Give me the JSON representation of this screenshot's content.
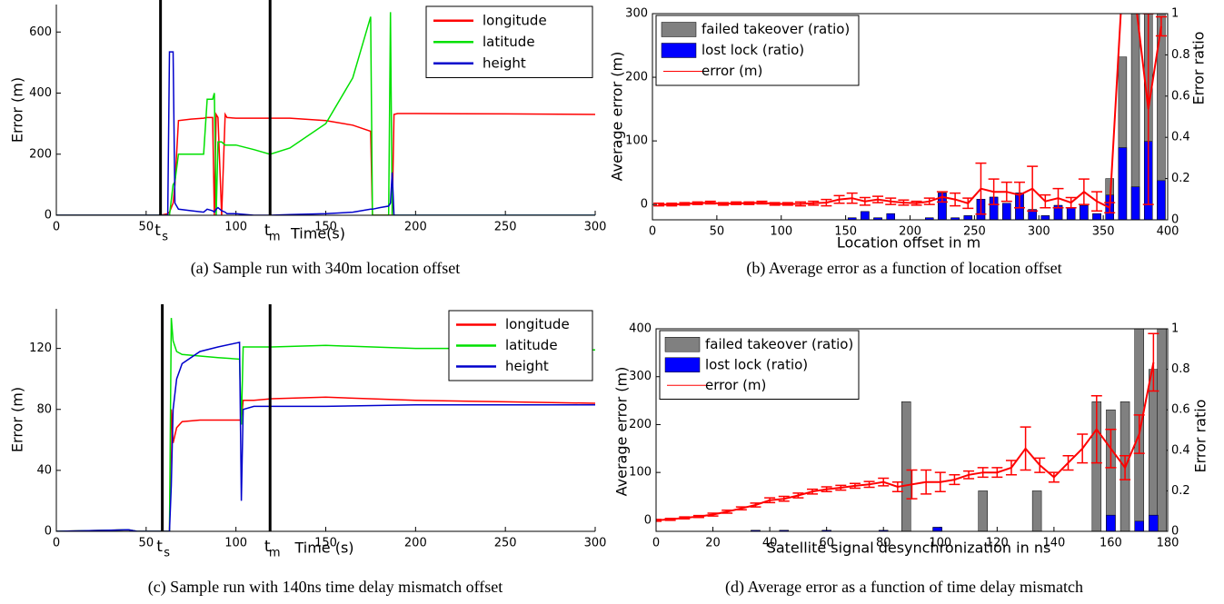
{
  "chart_data": [
    {
      "type": "line",
      "caption": "(a) Sample run with 340m location offset",
      "xlabel": "Time(s)",
      "ylabel": "Error (m)",
      "x": [
        0,
        50,
        58,
        62,
        63,
        65,
        66,
        68,
        75,
        82,
        84,
        87,
        88,
        89,
        90,
        92,
        94,
        95,
        100,
        110,
        119,
        130,
        150,
        165,
        175,
        176,
        180,
        185,
        186,
        187,
        188,
        190,
        200,
        250,
        300
      ],
      "series": [
        {
          "name": "longitude",
          "color": "#ff0000",
          "values": [
            0,
            0,
            0,
            5,
            10,
            40,
            100,
            310,
            315,
            318,
            320,
            320,
            0,
            330,
            320,
            0,
            330,
            320,
            318,
            318,
            318,
            318,
            310,
            295,
            275,
            0,
            0,
            0,
            0,
            0,
            330,
            333,
            333,
            332,
            330
          ]
        },
        {
          "name": "latitude",
          "color": "#00e000",
          "values": [
            0,
            0,
            0,
            0,
            0,
            100,
            110,
            200,
            200,
            200,
            380,
            380,
            400,
            0,
            240,
            240,
            230,
            230,
            230,
            215,
            200,
            220,
            300,
            450,
            650,
            0,
            0,
            0,
            665,
            0,
            0,
            0,
            0,
            0,
            0
          ]
        },
        {
          "name": "height",
          "color": "#0000cc",
          "values": [
            0,
            0,
            0,
            0,
            535,
            535,
            40,
            20,
            15,
            10,
            20,
            15,
            10,
            20,
            25,
            15,
            10,
            5,
            5,
            0,
            0,
            2,
            5,
            10,
            20,
            20,
            25,
            30,
            40,
            140,
            0,
            0,
            0,
            0,
            0
          ]
        }
      ],
      "vlines": [
        {
          "x": 58,
          "label": "t",
          "sub": "s"
        },
        {
          "x": 119,
          "label": "t",
          "sub": "m"
        }
      ],
      "xlim": [
        0,
        300
      ],
      "xticks": [
        0,
        50,
        100,
        150,
        200,
        250,
        300
      ],
      "ylim": [
        0,
        690
      ],
      "yticks": [
        0,
        200,
        400,
        600
      ],
      "legend": "upper right"
    },
    {
      "type": "combo",
      "caption": "(b) Average error as a function of location offset",
      "xlabel": "Location offset in m",
      "ylabel": "Average error (m)",
      "y2label": "Error ratio",
      "x": [
        5,
        15,
        25,
        35,
        45,
        55,
        65,
        75,
        85,
        95,
        105,
        115,
        125,
        135,
        145,
        155,
        165,
        175,
        185,
        195,
        205,
        215,
        225,
        235,
        245,
        255,
        265,
        275,
        285,
        295,
        305,
        315,
        325,
        335,
        345,
        355,
        365,
        375,
        385,
        395
      ],
      "series": [
        {
          "name": "failed takeover (ratio)",
          "type": "bar",
          "axis": "y2",
          "color": "#808080",
          "values": [
            0,
            0,
            0,
            0,
            0,
            0,
            0,
            0,
            0,
            0,
            0,
            0,
            0,
            0,
            0,
            0.01,
            0.04,
            0.01,
            0.03,
            0,
            0,
            0.01,
            0.13,
            0.01,
            0.02,
            0.1,
            0.11,
            0.08,
            0.13,
            0.05,
            0.02,
            0.07,
            0.06,
            0.07,
            0.03,
            0.2,
            0.79,
            1,
            1,
            1
          ]
        },
        {
          "name": "lost lock (ratio)",
          "type": "bar",
          "axis": "y2",
          "color": "#0000ff",
          "values": [
            0,
            0,
            0,
            0,
            0,
            0,
            0,
            0,
            0,
            0,
            0,
            0,
            0,
            0,
            0,
            0.01,
            0.04,
            0.01,
            0.03,
            0,
            0,
            0.01,
            0.13,
            0.01,
            0.02,
            0.1,
            0.11,
            0.08,
            0.13,
            0.05,
            0.02,
            0.07,
            0.06,
            0.07,
            0.03,
            0.12,
            0.35,
            0.16,
            0.38,
            0.19
          ]
        },
        {
          "name": "error (m)",
          "type": "line",
          "color": "#ff0000",
          "values": [
            0,
            0,
            1,
            2,
            3,
            1,
            2,
            2,
            3,
            1,
            1,
            1,
            2,
            3,
            8,
            10,
            5,
            8,
            5,
            3,
            2,
            5,
            12,
            8,
            2,
            25,
            20,
            20,
            15,
            25,
            5,
            10,
            3,
            20,
            5,
            -5,
            350,
            320,
            150,
            280
          ],
          "errors": [
            2,
            2,
            2,
            2,
            2,
            2,
            2,
            2,
            2,
            2,
            2,
            3,
            3,
            5,
            6,
            8,
            6,
            5,
            5,
            4,
            3,
            5,
            8,
            10,
            8,
            40,
            20,
            15,
            20,
            35,
            10,
            15,
            8,
            20,
            15,
            8,
            0,
            0,
            150,
            15
          ]
        }
      ],
      "xlim": [
        0,
        400
      ],
      "xticks": [
        0,
        50,
        100,
        150,
        200,
        250,
        300,
        350,
        400
      ],
      "ylim": [
        -24,
        300
      ],
      "yticks": [
        0,
        100,
        200,
        300
      ],
      "y2lim": [
        0,
        1
      ],
      "y2ticks": [
        0,
        0.2,
        0.4,
        0.6,
        0.8,
        1
      ],
      "legend": "upper left"
    },
    {
      "type": "line",
      "caption": "(c) Sample run with 140ns time delay mismatch offset",
      "xlabel": "Time (s)",
      "ylabel": "Error (m)",
      "x": [
        0,
        40,
        45,
        60,
        62,
        63,
        64,
        65,
        67,
        70,
        80,
        90,
        102,
        103,
        104,
        110,
        120,
        150,
        200,
        250,
        300
      ],
      "series": [
        {
          "name": "longitude",
          "color": "#ff0000",
          "values": [
            0,
            1,
            0,
            0,
            0,
            0,
            80,
            58,
            68,
            72,
            73,
            73,
            73,
            73,
            86,
            86,
            87,
            88,
            86,
            85,
            84
          ]
        },
        {
          "name": "latitude",
          "color": "#00e000",
          "values": [
            0,
            1,
            0,
            0,
            0,
            0,
            140,
            125,
            118,
            116,
            115,
            114,
            113,
            70,
            121,
            121,
            121,
            122,
            120,
            120,
            119
          ]
        },
        {
          "name": "height",
          "color": "#0000cc",
          "values": [
            0,
            1,
            0,
            0,
            0,
            0,
            30,
            80,
            100,
            110,
            118,
            121,
            124,
            20,
            80,
            82,
            82,
            82,
            83,
            83,
            83
          ]
        }
      ],
      "vlines": [
        {
          "x": 59,
          "label": "t",
          "sub": "s"
        },
        {
          "x": 119,
          "label": "t",
          "sub": "m"
        }
      ],
      "xlim": [
        0,
        300
      ],
      "xticks": [
        0,
        50,
        100,
        150,
        200,
        250,
        300
      ],
      "ylim": [
        0,
        146
      ],
      "yticks": [
        0,
        40,
        80,
        120
      ],
      "legend": "upper right"
    },
    {
      "type": "combo",
      "caption": "(d) Average error as a function of time delay mismatch",
      "xlabel": "Satellite signal desynchronization in ns",
      "ylabel": "Average error (m)",
      "y2label": "Error ratio",
      "x": [
        0,
        5,
        10,
        15,
        20,
        25,
        30,
        35,
        40,
        45,
        50,
        55,
        60,
        65,
        70,
        75,
        80,
        85,
        90,
        95,
        100,
        105,
        110,
        115,
        120,
        125,
        130,
        135,
        140,
        145,
        150,
        155,
        160,
        165,
        170,
        175
      ],
      "series": [
        {
          "name": "failed takeover (ratio)",
          "type": "bar",
          "axis": "y2",
          "color": "#808080",
          "x": [
            35,
            45,
            60,
            80,
            88,
            99,
            115,
            134,
            155,
            160,
            165,
            170,
            175,
            178
          ],
          "values": [
            0.005,
            0.005,
            0.005,
            0.005,
            0.64,
            0.02,
            0.2,
            0.2,
            0.64,
            0.6,
            0.64,
            1,
            0.8,
            1
          ]
        },
        {
          "name": "lost lock (ratio)",
          "type": "bar",
          "axis": "y2",
          "color": "#0000ff",
          "x": [
            35,
            45,
            60,
            80,
            88,
            99,
            115,
            134,
            155,
            160,
            165,
            170,
            175,
            178
          ],
          "values": [
            0.005,
            0.005,
            0.005,
            0.005,
            0,
            0.02,
            0,
            0,
            0,
            0.08,
            0,
            0.05,
            0.08,
            0
          ]
        },
        {
          "name": "error (m)",
          "type": "line",
          "color": "#ff0000",
          "values": [
            0,
            2,
            5,
            8,
            12,
            18,
            25,
            32,
            42,
            45,
            52,
            60,
            65,
            68,
            72,
            75,
            80,
            70,
            75,
            80,
            80,
            85,
            95,
            100,
            100,
            110,
            150,
            115,
            90,
            120,
            150,
            190,
            150,
            110,
            180,
            330
          ],
          "errors": [
            2,
            2,
            2,
            2,
            3,
            3,
            3,
            4,
            5,
            5,
            5,
            5,
            5,
            5,
            5,
            6,
            8,
            10,
            30,
            25,
            20,
            10,
            8,
            10,
            10,
            15,
            45,
            15,
            10,
            15,
            30,
            70,
            40,
            25,
            40,
            60
          ]
        }
      ],
      "xlim": [
        0,
        180
      ],
      "xticks": [
        0,
        20,
        40,
        60,
        80,
        100,
        120,
        140,
        160,
        180
      ],
      "ylim": [
        -23,
        400
      ],
      "yticks": [
        0,
        100,
        200,
        300,
        400
      ],
      "y2lim": [
        0,
        1
      ],
      "y2ticks": [
        0,
        0.2,
        0.4,
        0.6,
        0.8,
        1
      ],
      "legend": "upper left"
    }
  ]
}
